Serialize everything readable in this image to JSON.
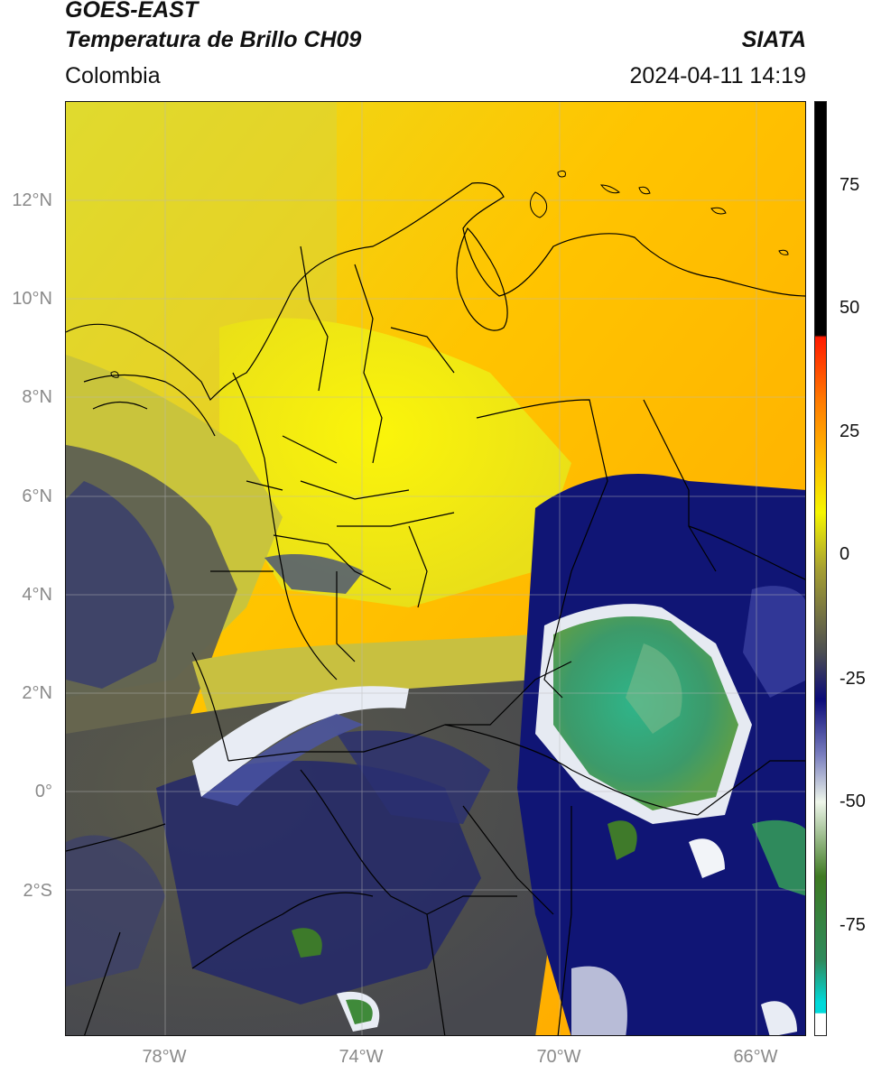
{
  "header": {
    "satellite": "GOES-EAST",
    "product": "Temperatura de Brillo CH09",
    "region": "Colombia",
    "agency": "SIATA",
    "datetime": "2024-04-11 14:19"
  },
  "axes": {
    "lat_ticks": [
      "12°N",
      "10°N",
      "8°N",
      "6°N",
      "4°N",
      "2°N",
      "0°",
      "2°S"
    ],
    "lon_ticks": [
      "78°W",
      "74°W",
      "70°W",
      "66°W"
    ]
  },
  "colorbar": {
    "ticks": [
      "75",
      "50",
      "25",
      "0",
      "-25",
      "-50",
      "-75"
    ],
    "colors": [
      "#ffffff",
      "#00d9d9",
      "#2e8a5c",
      "#3e7a22",
      "#eef6ea",
      "#7a7fbf",
      "#0a0a78",
      "#4c4e52",
      "#a6a032",
      "#f5f500",
      "#ffae00",
      "#ff7a00",
      "#ff1a00",
      "#000000"
    ]
  }
}
